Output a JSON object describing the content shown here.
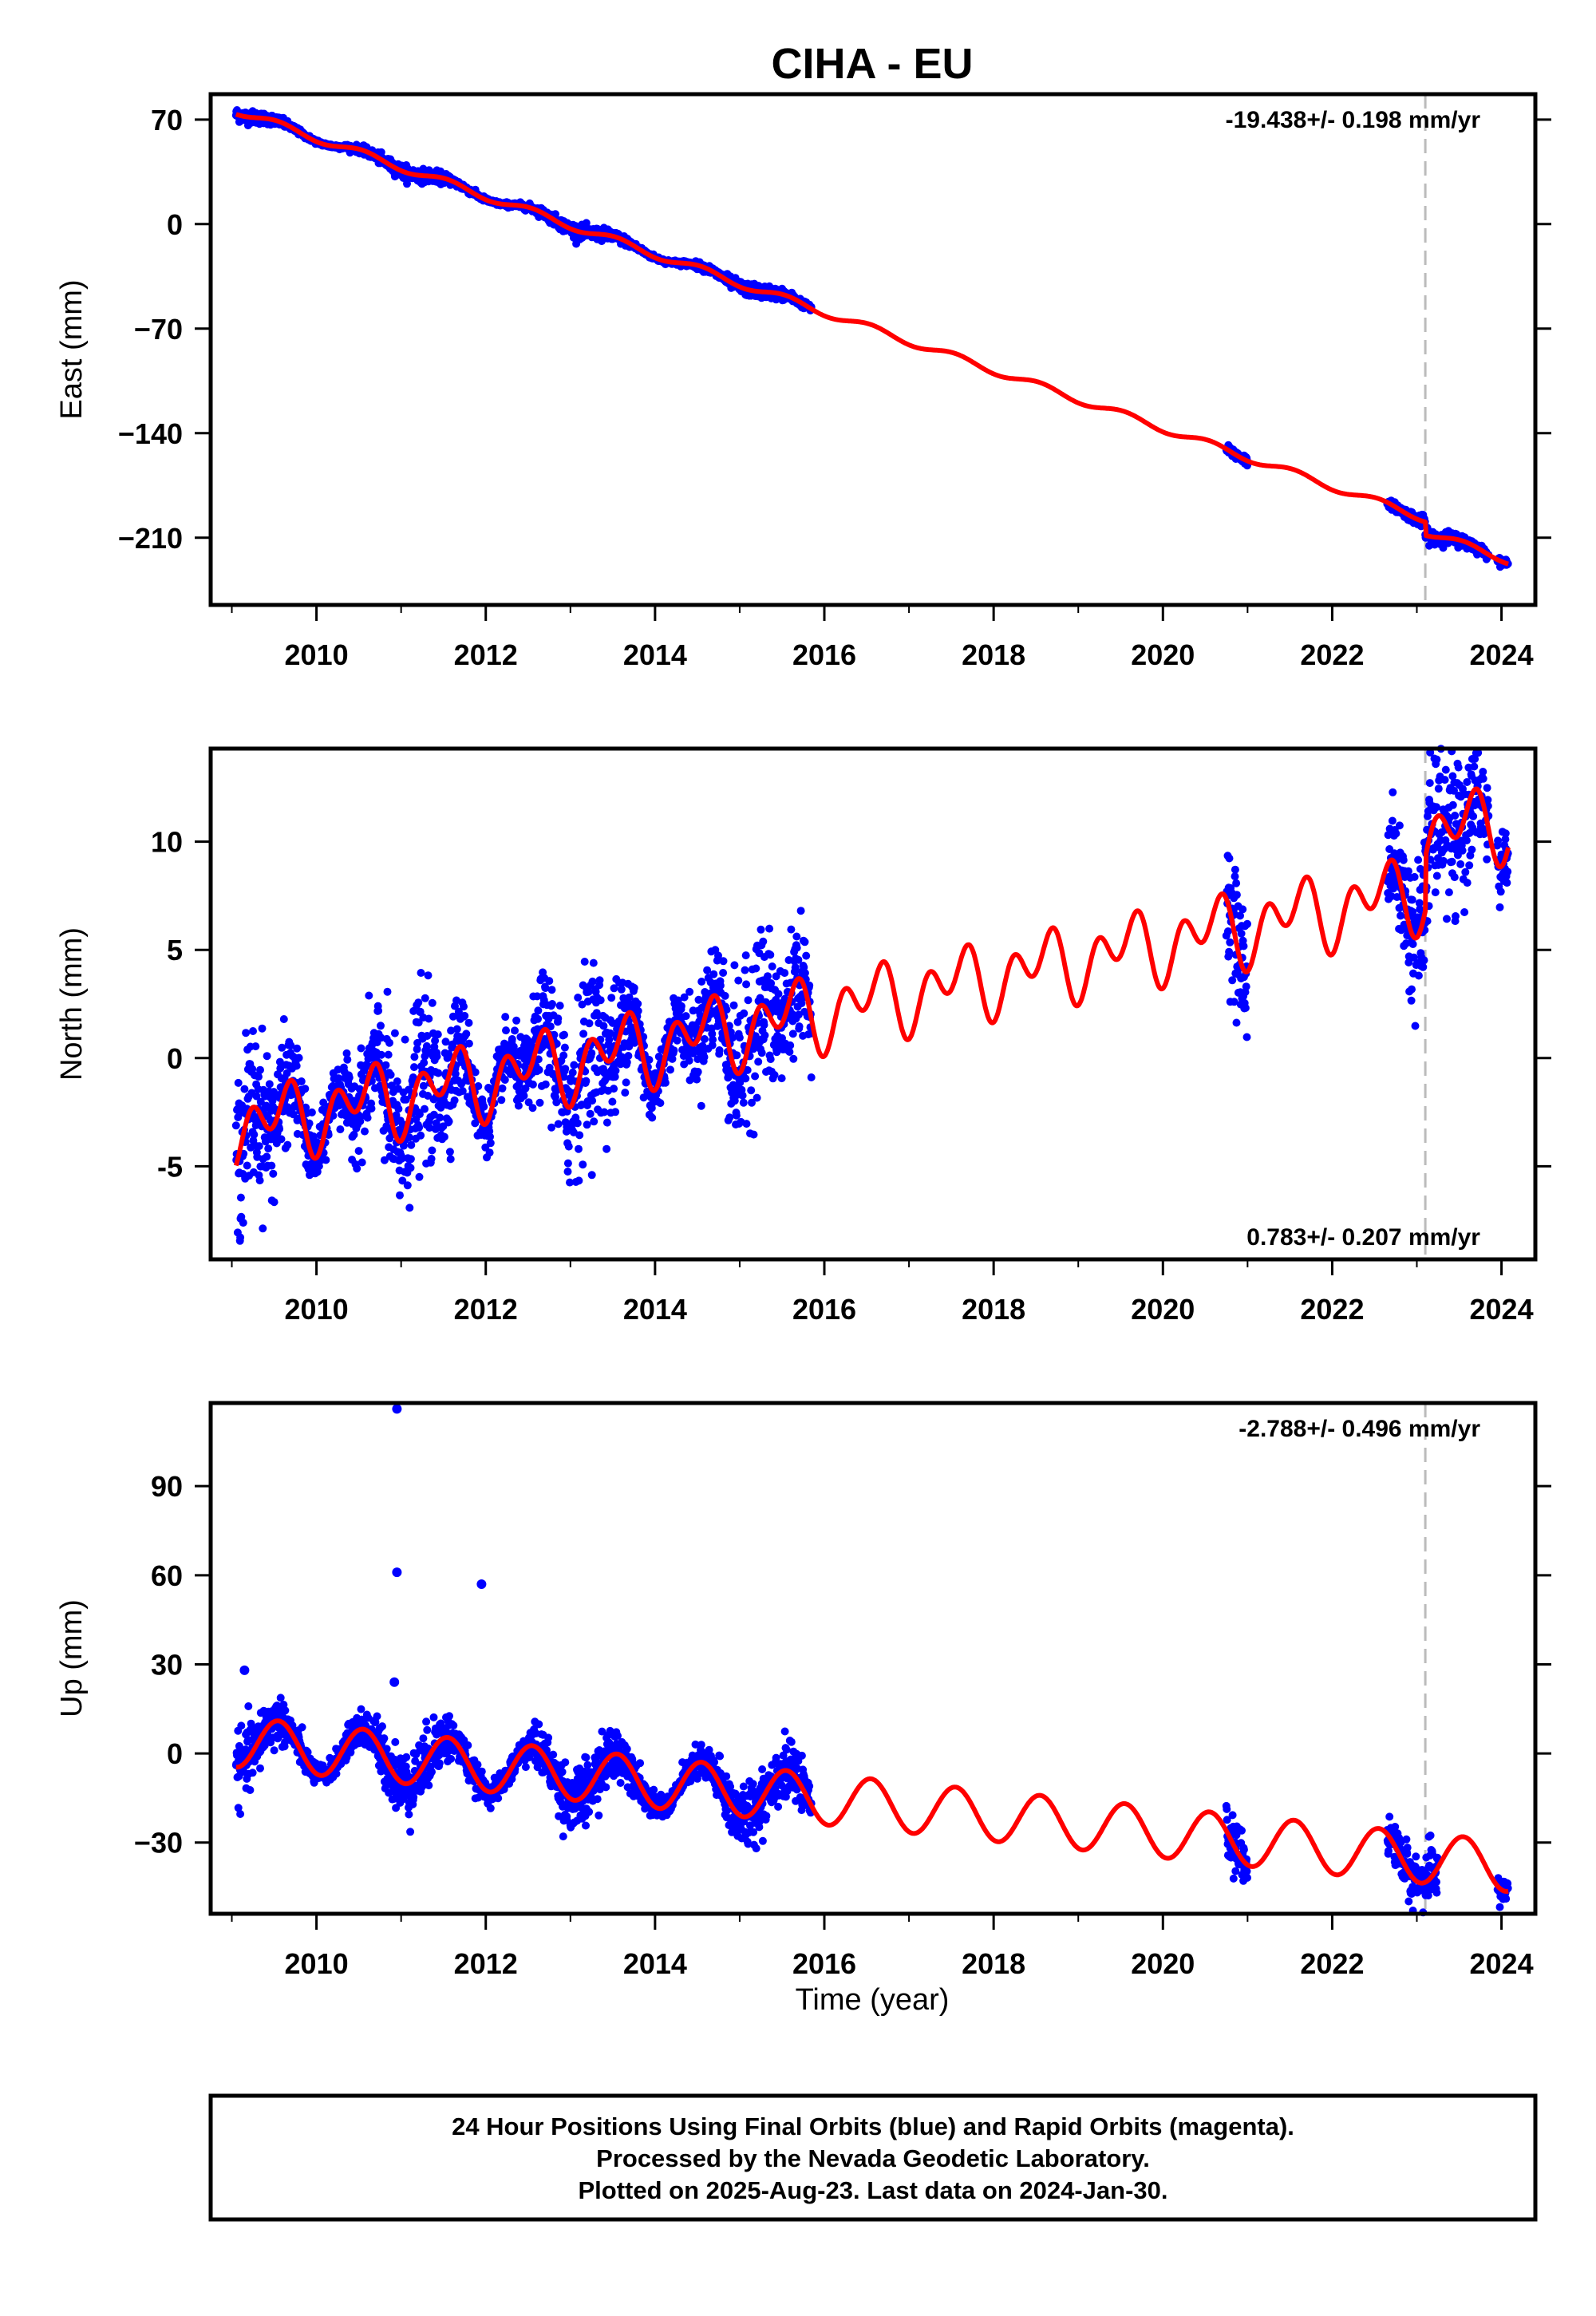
{
  "title": "CIHA - EU",
  "x_axis_label": "Time (year)",
  "footer": {
    "line1": "24 Hour Positions Using Final Orbits (blue) and Rapid Orbits (magenta).",
    "line2": "Processed by the Nevada Geodetic Laboratory.",
    "line3": "Plotted on 2025-Aug-23. Last data on 2024-Jan-30."
  },
  "colors": {
    "data": "#0000ff",
    "model": "#ff0000",
    "event_line": "#bbbbbb",
    "frame": "#000000"
  },
  "chart_data": [
    {
      "type": "scatter",
      "component": "east",
      "ylabel": "East (mm)",
      "rate_text": "-19.438+/- 0.198 mm/yr",
      "rate_position": "top-right",
      "xlim": [
        2008.75,
        2024.4
      ],
      "ylim": [
        -255,
        87
      ],
      "x_ticks": [
        2010,
        2012,
        2014,
        2016,
        2018,
        2020,
        2022,
        2024
      ],
      "y_ticks": [
        70,
        0,
        -70,
        -140,
        -210
      ],
      "y_tick_labels": [
        "70",
        "0",
        "−70",
        "−140",
        "−210"
      ],
      "event_line_x": 2023.1,
      "data_segments": [
        [
          2009.05,
          2015.85
        ],
        [
          2020.75,
          2021.0
        ],
        [
          2022.65,
          2023.85
        ],
        [
          2023.95,
          2024.08
        ]
      ],
      "model": {
        "rate": -19.438,
        "intercept_at_2009": 77,
        "annual_amplitude": 2.5,
        "offsets": [
          {
            "x": 2023.1,
            "dy": -9
          }
        ]
      },
      "noise_mm": 1.8
    },
    {
      "type": "scatter",
      "component": "north",
      "ylabel": "North (mm)",
      "rate_text": "0.783+/- 0.207 mm/yr",
      "rate_position": "bottom-right",
      "xlim": [
        2008.75,
        2024.4
      ],
      "ylim": [
        -9.3,
        14.3
      ],
      "x_ticks": [
        2010,
        2012,
        2014,
        2016,
        2018,
        2020,
        2022,
        2024
      ],
      "y_ticks": [
        10,
        5,
        0,
        -5
      ],
      "y_tick_labels": [
        "10",
        "5",
        "0",
        "-5"
      ],
      "event_line_x": 2023.1,
      "data_segments": [
        [
          2009.05,
          2015.85
        ],
        [
          2020.75,
          2021.0
        ],
        [
          2022.65,
          2023.85
        ],
        [
          2023.95,
          2024.08
        ]
      ],
      "model": {
        "rate": 0.783,
        "intercept_at_2009": -3.3,
        "annual_amplitude": 1.0,
        "semiannual_amplitude": 1.2,
        "offsets": [
          {
            "x": 2023.1,
            "dy": 2.5
          }
        ]
      },
      "noise_mm": 1.6
    },
    {
      "type": "scatter",
      "component": "up",
      "ylabel": "Up (mm)",
      "rate_text": "-2.788+/- 0.496 mm/yr",
      "rate_position": "top-right",
      "xlim": [
        2008.75,
        2024.4
      ],
      "ylim": [
        -54,
        118
      ],
      "x_ticks": [
        2010,
        2012,
        2014,
        2016,
        2018,
        2020,
        2022,
        2024
      ],
      "y_ticks": [
        90,
        60,
        30,
        0,
        -30
      ],
      "y_tick_labels": [
        "90",
        "60",
        "30",
        "0",
        "−30"
      ],
      "event_line_x": 2023.1,
      "data_segments": [
        [
          2009.05,
          2015.85
        ],
        [
          2020.75,
          2021.0
        ],
        [
          2022.65,
          2023.25
        ],
        [
          2023.95,
          2024.08
        ]
      ],
      "model": {
        "rate": -2.788,
        "intercept_at_2009": 4,
        "annual_amplitude": 8.5,
        "offsets": []
      },
      "noise_mm": 4.5,
      "outliers": [
        [
          2010.95,
          116
        ],
        [
          2010.95,
          61
        ],
        [
          2011.95,
          57
        ],
        [
          2010.92,
          24
        ],
        [
          2009.15,
          28
        ]
      ]
    }
  ]
}
